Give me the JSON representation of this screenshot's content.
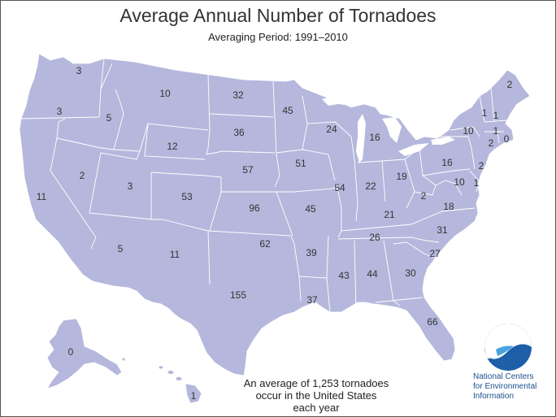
{
  "title": "Average Annual Number of Tornadoes",
  "subtitle": "Averaging Period:  1991–2010",
  "caption": [
    "An average of 1,253 tornadoes",
    "occur in the United States",
    "each year"
  ],
  "agency": [
    "National Centers",
    "for Environmental",
    "Information"
  ],
  "logo_text": "NOAA",
  "colors": {
    "land": "#b5b8dc",
    "border": "#ffffff",
    "text": "#333333",
    "noaa_blue": "#1b4f8f"
  },
  "states": [
    {
      "id": "WA",
      "value": "3"
    },
    {
      "id": "OR",
      "value": "3"
    },
    {
      "id": "ID",
      "value": "5"
    },
    {
      "id": "MT",
      "value": "10"
    },
    {
      "id": "ND",
      "value": "32"
    },
    {
      "id": "MN",
      "value": "45"
    },
    {
      "id": "WY",
      "value": "12"
    },
    {
      "id": "SD",
      "value": "36"
    },
    {
      "id": "WI",
      "value": "24"
    },
    {
      "id": "MI",
      "value": "16"
    },
    {
      "id": "NV",
      "value": "2"
    },
    {
      "id": "CA",
      "value": "11"
    },
    {
      "id": "UT",
      "value": "3"
    },
    {
      "id": "CO",
      "value": "53"
    },
    {
      "id": "NE",
      "value": "57"
    },
    {
      "id": "IA",
      "value": "51"
    },
    {
      "id": "IL",
      "value": "54"
    },
    {
      "id": "IN",
      "value": "22"
    },
    {
      "id": "OH",
      "value": "19"
    },
    {
      "id": "PA",
      "value": "16"
    },
    {
      "id": "NY",
      "value": "10"
    },
    {
      "id": "KS",
      "value": "96"
    },
    {
      "id": "MO",
      "value": "45"
    },
    {
      "id": "KY",
      "value": "21"
    },
    {
      "id": "WV",
      "value": "2"
    },
    {
      "id": "VA",
      "value": "18"
    },
    {
      "id": "AZ",
      "value": "5"
    },
    {
      "id": "NM",
      "value": "11"
    },
    {
      "id": "OK",
      "value": "62"
    },
    {
      "id": "AR",
      "value": "39"
    },
    {
      "id": "TN",
      "value": "26"
    },
    {
      "id": "NC",
      "value": "31"
    },
    {
      "id": "SC",
      "value": "27"
    },
    {
      "id": "TX",
      "value": "155"
    },
    {
      "id": "LA",
      "value": "37"
    },
    {
      "id": "MS",
      "value": "43"
    },
    {
      "id": "AL",
      "value": "44"
    },
    {
      "id": "GA",
      "value": "30"
    },
    {
      "id": "FL",
      "value": "66"
    },
    {
      "id": "AK",
      "value": "0"
    },
    {
      "id": "HI",
      "value": "1"
    },
    {
      "id": "ME",
      "value": "2"
    },
    {
      "id": "VT",
      "value": "1"
    },
    {
      "id": "NH",
      "value": "1"
    },
    {
      "id": "MA",
      "value": "1"
    },
    {
      "id": "CT",
      "value": "2"
    },
    {
      "id": "RI",
      "value": "0"
    },
    {
      "id": "NJ",
      "value": "2"
    },
    {
      "id": "MD",
      "value": "10"
    },
    {
      "id": "DE",
      "value": "1"
    }
  ]
}
